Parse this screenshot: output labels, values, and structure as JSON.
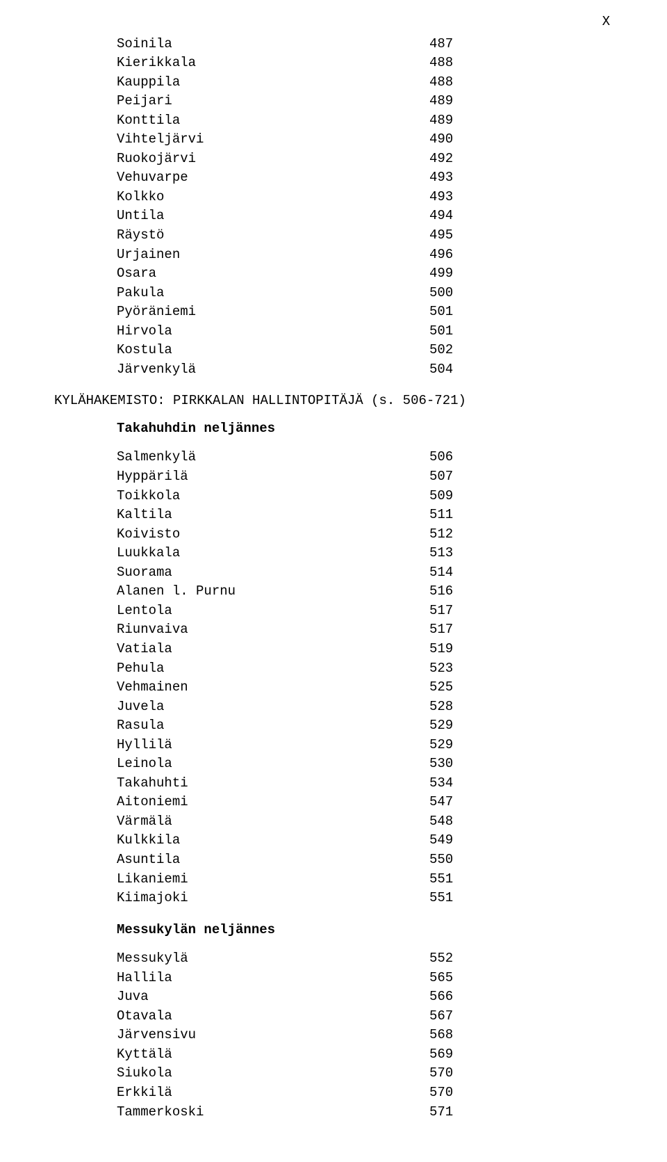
{
  "page_marker": "X",
  "top_list": [
    {
      "label": "Soinila",
      "value": "487"
    },
    {
      "label": "Kierikkala",
      "value": "488"
    },
    {
      "label": "Kauppila",
      "value": "488"
    },
    {
      "label": "Peijari",
      "value": "489"
    },
    {
      "label": "Konttila",
      "value": "489"
    },
    {
      "label": "Vihteljärvi",
      "value": "490"
    },
    {
      "label": "Ruokojärvi",
      "value": "492"
    },
    {
      "label": "Vehuvarpe",
      "value": "493"
    },
    {
      "label": "Kolkko",
      "value": "493"
    },
    {
      "label": "Untila",
      "value": "494"
    },
    {
      "label": "Räystö",
      "value": "495"
    },
    {
      "label": "Urjainen",
      "value": "496"
    },
    {
      "label": "Osara",
      "value": "499"
    },
    {
      "label": "Pakula",
      "value": "500"
    },
    {
      "label": "Pyöräniemi",
      "value": "501"
    },
    {
      "label": "Hirvola",
      "value": "501"
    },
    {
      "label": "Kostula",
      "value": "502"
    },
    {
      "label": "Järvenkylä",
      "value": "504"
    }
  ],
  "section_heading": "KYLÄHAKEMISTO: PIRKKALAN HALLINTOPITÄJÄ (s. 506-721)",
  "groups": [
    {
      "title": "Takahuhdin neljännes",
      "items": [
        {
          "label": "Salmenkylä",
          "value": "506"
        },
        {
          "label": "Hyppärilä",
          "value": "507"
        },
        {
          "label": "Toikkola",
          "value": "509"
        },
        {
          "label": "Kaltila",
          "value": "511"
        },
        {
          "label": "Koivisto",
          "value": "512"
        },
        {
          "label": "Luukkala",
          "value": "513"
        },
        {
          "label": "Suorama",
          "value": "514"
        },
        {
          "label": "Alanen l. Purnu",
          "value": "516"
        },
        {
          "label": "Lentola",
          "value": "517"
        },
        {
          "label": "Riunvaiva",
          "value": "517"
        },
        {
          "label": "Vatiala",
          "value": "519"
        },
        {
          "label": "Pehula",
          "value": "523"
        },
        {
          "label": "Vehmainen",
          "value": "525"
        },
        {
          "label": "Juvela",
          "value": "528"
        },
        {
          "label": "Rasula",
          "value": "529"
        },
        {
          "label": "Hyllilä",
          "value": "529"
        },
        {
          "label": "Leinola",
          "value": "530"
        },
        {
          "label": "Takahuhti",
          "value": "534"
        },
        {
          "label": "Aitoniemi",
          "value": "547"
        },
        {
          "label": "Värmälä",
          "value": "548"
        },
        {
          "label": "Kulkkila",
          "value": "549"
        },
        {
          "label": "Asuntila",
          "value": "550"
        },
        {
          "label": "Likaniemi",
          "value": "551"
        },
        {
          "label": "Kiimajoki",
          "value": "551"
        }
      ]
    },
    {
      "title": "Messukylän neljännes",
      "items": [
        {
          "label": "Messukylä",
          "value": "552"
        },
        {
          "label": "Hallila",
          "value": "565"
        },
        {
          "label": "Juva",
          "value": "566"
        },
        {
          "label": "Otavala",
          "value": "567"
        },
        {
          "label": "Järvensivu",
          "value": "568"
        },
        {
          "label": "Kyttälä",
          "value": "569"
        },
        {
          "label": "Siukola",
          "value": "570"
        },
        {
          "label": "Erkkilä",
          "value": "570"
        },
        {
          "label": "Tammerkoski",
          "value": "571"
        }
      ]
    }
  ]
}
